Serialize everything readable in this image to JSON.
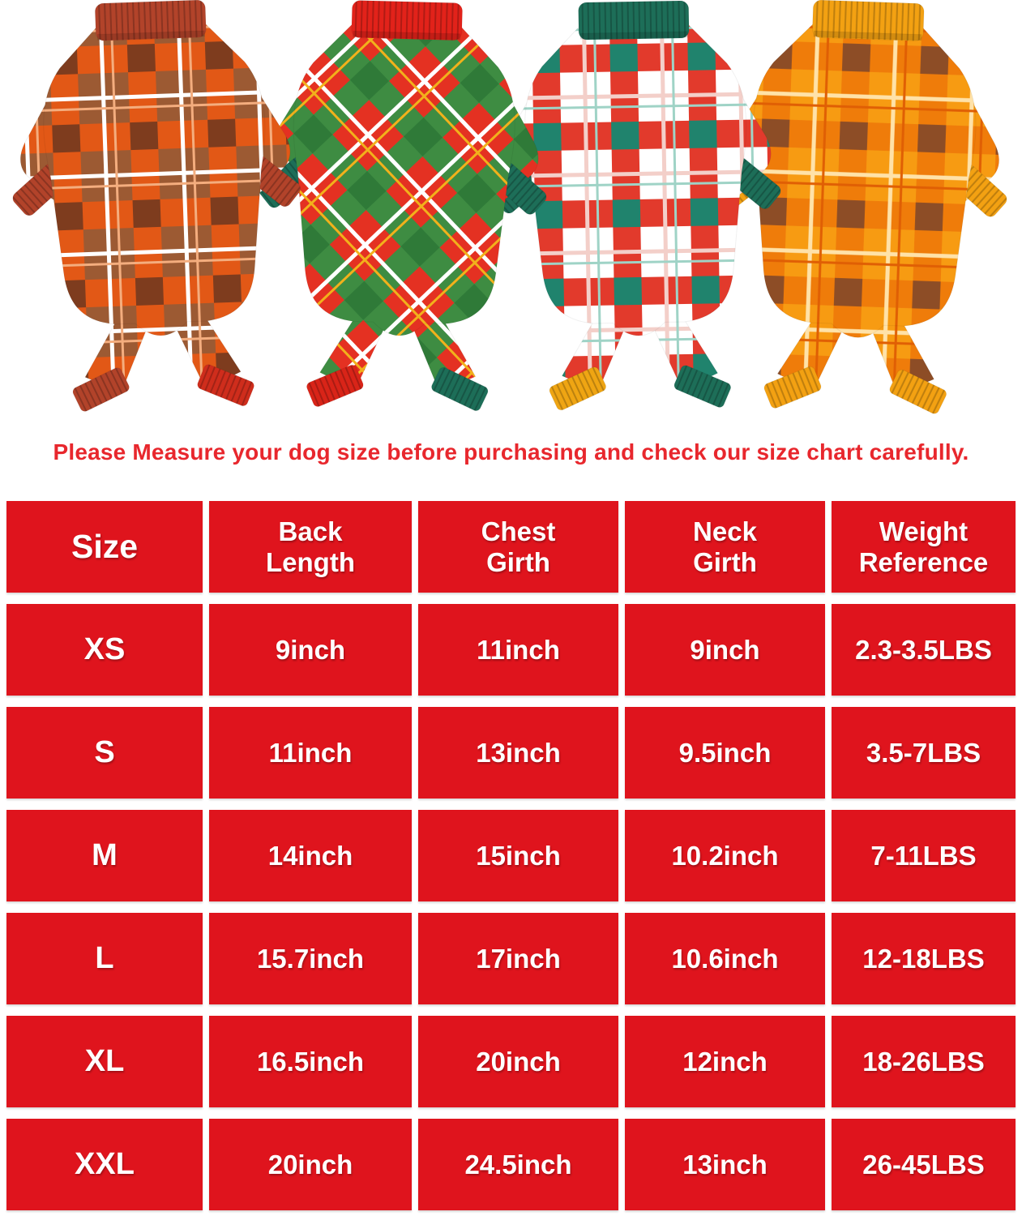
{
  "hero": {
    "pajamas": [
      {
        "id": "brown-orange-plaid",
        "collar": "#b2432a",
        "sleeve_cuff": "#b2432a",
        "leg_cuff_left": "#b2432a",
        "leg_cuff_right": "#cf2d1c",
        "rotate": -2,
        "pattern": {
          "rotate": 0,
          "base": "#9c5a33",
          "band": "#e25816",
          "block": "#7e3c1e",
          "line1": "#ffffff",
          "line2": "#f4ad7e"
        }
      },
      {
        "id": "red-green-diagonal-plaid",
        "collar": "#e2221a",
        "sleeve_cuff": "#1d6e58",
        "leg_cuff_left": "#d92418",
        "leg_cuff_right": "#1d6e58",
        "rotate": 1.5,
        "pattern": {
          "rotate": 45,
          "base": "#e43122",
          "band": "#3e8c42",
          "block": "#2f7a38",
          "line1": "#ffffff",
          "line2": "#f2b11b"
        }
      },
      {
        "id": "white-red-green-plaid",
        "collar": "#1d6e58",
        "sleeve_cuff": "#1d6e58",
        "leg_cuff_left": "#efa513",
        "leg_cuff_right": "#1d6e58",
        "rotate": -1,
        "pattern": {
          "rotate": 0,
          "base": "#ffffff",
          "band": "#e23a2c",
          "block": "#20836d",
          "line1": "#f3cfc9",
          "line2": "#9fd3c6"
        }
      },
      {
        "id": "orange-gold-plaid",
        "collar": "#f3a112",
        "sleeve_cuff": "#f3a112",
        "leg_cuff_left": "#f3a112",
        "leg_cuff_right": "#f3a112",
        "rotate": 2,
        "pattern": {
          "rotate": 0,
          "base": "#f79b12",
          "band": "#ef7c0a",
          "block": "#8d4d26",
          "line1": "#ffe2a8",
          "line2": "#e05f04"
        }
      }
    ]
  },
  "notice": {
    "text": "Please Measure your dog size before purchasing and check our size chart carefully.",
    "color": "#e8272d"
  },
  "colors": {
    "table_cell": "#df141d",
    "table_text": "#ffffff",
    "background": "#ffffff"
  },
  "chart_data": {
    "type": "table",
    "title": "",
    "columns": [
      "Size",
      "Back\nLength",
      "Chest\nGirth",
      "Neck\nGirth",
      "Weight\nReference"
    ],
    "rows": [
      [
        "XS",
        "9inch",
        "11inch",
        "9inch",
        "2.3-3.5LBS"
      ],
      [
        "S",
        "11inch",
        "13inch",
        "9.5inch",
        "3.5-7LBS"
      ],
      [
        "M",
        "14inch",
        "15inch",
        "10.2inch",
        "7-11LBS"
      ],
      [
        "L",
        "15.7inch",
        "17inch",
        "10.6inch",
        "12-18LBS"
      ],
      [
        "XL",
        "16.5inch",
        "20inch",
        "12inch",
        "18-26LBS"
      ],
      [
        "XXL",
        "20inch",
        "24.5inch",
        "13inch",
        "26-45LBS"
      ]
    ]
  }
}
